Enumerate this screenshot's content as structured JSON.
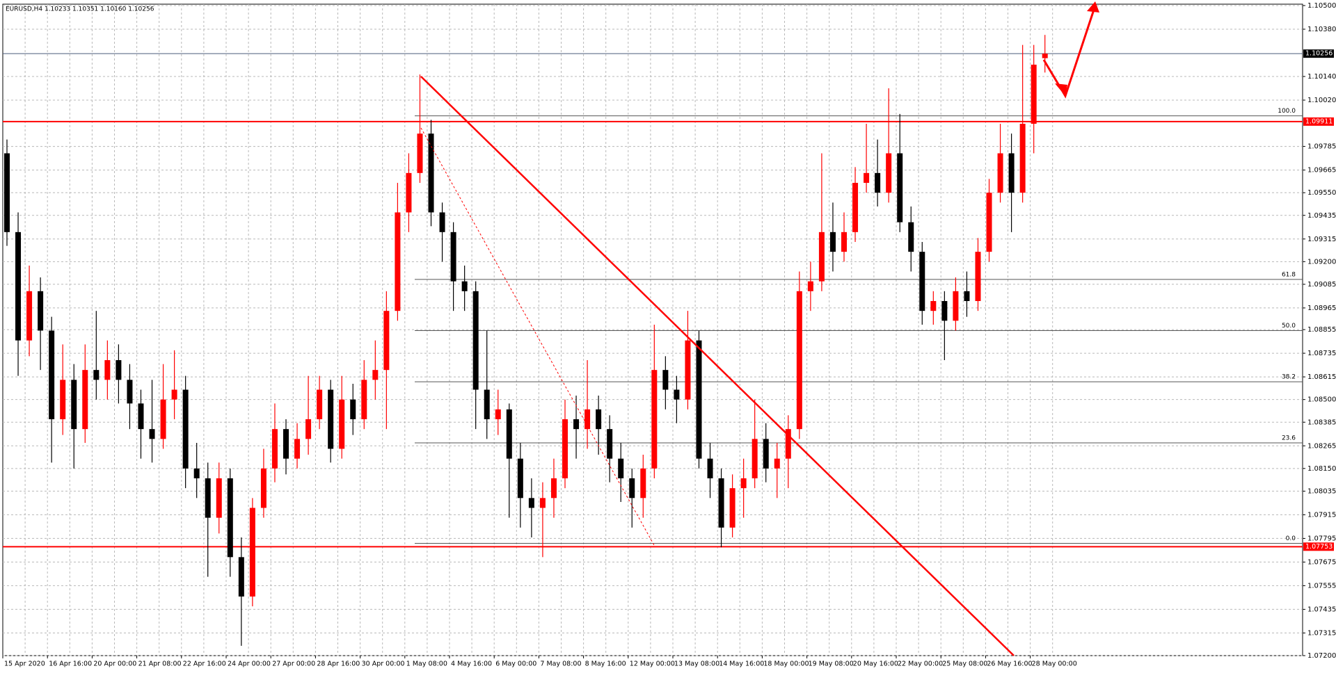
{
  "chart_data": {
    "type": "candlestick",
    "title": "EURUSD,H4  1.10233 1.10351 1.10160 1.10256",
    "up_color": "#ff0000",
    "down_color": "#000000",
    "grid": true,
    "ylim": [
      1.072,
      1.105
    ],
    "yticks": [
      {
        "value": 1.105,
        "label": "1.10500"
      },
      {
        "value": 1.1038,
        "label": "1.10380"
      },
      {
        "value": 1.1014,
        "label": "1.10140"
      },
      {
        "value": 1.1002,
        "label": "1.10020"
      },
      {
        "value": 1.09785,
        "label": "1.09785"
      },
      {
        "value": 1.09665,
        "label": "1.09665"
      },
      {
        "value": 1.0955,
        "label": "1.09550"
      },
      {
        "value": 1.09435,
        "label": "1.09435"
      },
      {
        "value": 1.09315,
        "label": "1.09315"
      },
      {
        "value": 1.092,
        "label": "1.09200"
      },
      {
        "value": 1.09085,
        "label": "1.09085"
      },
      {
        "value": 1.08965,
        "label": "1.08965"
      },
      {
        "value": 1.08855,
        "label": "1.08855"
      },
      {
        "value": 1.08735,
        "label": "1.08735"
      },
      {
        "value": 1.08615,
        "label": "1.08615"
      },
      {
        "value": 1.085,
        "label": "1.08500"
      },
      {
        "value": 1.08385,
        "label": "1.08385"
      },
      {
        "value": 1.08265,
        "label": "1.08265"
      },
      {
        "value": 1.0815,
        "label": "1.08150"
      },
      {
        "value": 1.08035,
        "label": "1.08035"
      },
      {
        "value": 1.07915,
        "label": "1.07915"
      },
      {
        "value": 1.07795,
        "label": "1.07795"
      },
      {
        "value": 1.07675,
        "label": "1.07675"
      },
      {
        "value": 1.07555,
        "label": "1.07555"
      },
      {
        "value": 1.07435,
        "label": "1.07435"
      },
      {
        "value": 1.07315,
        "label": "1.07315"
      },
      {
        "value": 1.072,
        "label": "1.07200"
      }
    ],
    "x_labels": [
      "15 Apr 2020",
      "16 Apr 16:00",
      "20 Apr 00:00",
      "21 Apr 08:00",
      "22 Apr 16:00",
      "24 Apr 00:00",
      "27 Apr 00:00",
      "28 Apr 16:00",
      "30 Apr 00:00",
      "1 May 08:00",
      "4 May 16:00",
      "6 May 00:00",
      "7 May 08:00",
      "8 May 16:00",
      "12 May 00:00",
      "13 May 08:00",
      "14 May 16:00",
      "18 May 00:00",
      "19 May 08:00",
      "20 May 16:00",
      "22 May 00:00",
      "25 May 08:00",
      "26 May 16:00",
      "28 May 00:00"
    ],
    "open": [
      1.0975,
      1.0935,
      1.088,
      1.0905,
      1.0885,
      1.084,
      1.086,
      1.0835,
      1.0865,
      1.086,
      1.087,
      1.086,
      1.0848,
      1.0835,
      1.083,
      1.085,
      1.0855,
      1.0815,
      1.081,
      1.079,
      1.081,
      1.077,
      1.075,
      1.0795,
      1.0815,
      1.0835,
      1.082,
      1.083,
      1.084,
      1.0855,
      1.0825,
      1.085,
      1.084,
      1.086,
      1.0865,
      1.0895,
      1.0945,
      1.0965,
      1.0985,
      1.0945,
      1.0935,
      1.091,
      1.0905,
      1.0855,
      1.084,
      1.0845,
      1.082,
      1.08,
      1.0795,
      1.08,
      1.081,
      1.084,
      1.0835,
      1.0845,
      1.0835,
      1.082,
      1.081,
      1.08,
      1.0815,
      1.0865,
      1.0855,
      1.085,
      1.088,
      1.082,
      1.081,
      1.0785,
      1.0805,
      1.081,
      1.083,
      1.0815,
      1.082,
      1.0835,
      1.0905,
      1.091,
      1.0935,
      1.0925,
      1.0935,
      1.096,
      1.0965,
      1.0955,
      1.0975,
      1.094,
      1.0925,
      1.0895,
      1.09,
      1.089,
      1.0905,
      1.09,
      1.0925,
      1.0955,
      1.0975,
      1.0955,
      1.099,
      1.10233
    ],
    "high": [
      1.0982,
      1.0945,
      1.0918,
      1.0912,
      1.0892,
      1.0878,
      1.0868,
      1.0878,
      1.0895,
      1.088,
      1.0878,
      1.0868,
      1.0855,
      1.086,
      1.0868,
      1.0875,
      1.0862,
      1.0828,
      1.0818,
      1.0818,
      1.0815,
      1.078,
      1.08,
      1.0825,
      1.0848,
      1.084,
      1.0838,
      1.0862,
      1.0862,
      1.086,
      1.0862,
      1.0858,
      1.087,
      1.088,
      1.0905,
      1.096,
      1.0975,
      1.1015,
      1.0992,
      1.095,
      1.094,
      1.0918,
      1.091,
      1.0885,
      1.0855,
      1.0848,
      1.0828,
      1.081,
      1.0808,
      1.082,
      1.085,
      1.0852,
      1.087,
      1.0852,
      1.0842,
      1.0828,
      1.0815,
      1.0822,
      1.0888,
      1.0872,
      1.0862,
      1.0895,
      1.0885,
      1.0828,
      1.0815,
      1.0812,
      1.082,
      1.085,
      1.0838,
      1.0828,
      1.0842,
      1.0915,
      1.092,
      1.0975,
      1.095,
      1.0945,
      1.0968,
      1.099,
      1.0982,
      1.1008,
      1.0995,
      1.0948,
      1.093,
      1.0905,
      1.0905,
      1.0912,
      1.0915,
      1.0932,
      1.0962,
      1.099,
      1.0985,
      1.103,
      1.103,
      1.10351
    ],
    "low": [
      1.0928,
      1.0862,
      1.0872,
      1.0865,
      1.0818,
      1.0832,
      1.0815,
      1.0828,
      1.085,
      1.085,
      1.0848,
      1.0835,
      1.082,
      1.0818,
      1.0825,
      1.084,
      1.0805,
      1.08,
      1.076,
      1.0782,
      1.076,
      1.0725,
      1.0745,
      1.079,
      1.0808,
      1.0812,
      1.0815,
      1.0822,
      1.0835,
      1.0818,
      1.082,
      1.0832,
      1.0835,
      1.085,
      1.0835,
      1.089,
      1.0935,
      1.096,
      1.0938,
      1.092,
      1.0895,
      1.0895,
      1.0835,
      1.083,
      1.0832,
      1.079,
      1.0785,
      1.078,
      1.077,
      1.079,
      1.0805,
      1.082,
      1.0825,
      1.0822,
      1.0808,
      1.0798,
      1.0785,
      1.079,
      1.081,
      1.0845,
      1.0838,
      1.0845,
      1.0815,
      1.08,
      1.0775,
      1.078,
      1.079,
      1.0805,
      1.0808,
      1.08,
      1.0805,
      1.083,
      1.0895,
      1.0905,
      1.0915,
      1.092,
      1.093,
      1.0955,
      1.0948,
      1.095,
      1.0935,
      1.0915,
      1.0888,
      1.0888,
      1.087,
      1.0885,
      1.0892,
      1.0895,
      1.092,
      1.095,
      1.0935,
      1.095,
      1.0975,
      1.1016
    ],
    "close": [
      1.0935,
      1.088,
      1.0905,
      1.0885,
      1.084,
      1.086,
      1.0835,
      1.0865,
      1.086,
      1.087,
      1.086,
      1.0848,
      1.0835,
      1.083,
      1.085,
      1.0855,
      1.0815,
      1.081,
      1.079,
      1.081,
      1.077,
      1.075,
      1.0795,
      1.0815,
      1.0835,
      1.082,
      1.083,
      1.084,
      1.0855,
      1.0825,
      1.085,
      1.084,
      1.086,
      1.0865,
      1.0895,
      1.0945,
      1.0965,
      1.0985,
      1.0945,
      1.0935,
      1.091,
      1.0905,
      1.0855,
      1.084,
      1.0845,
      1.082,
      1.08,
      1.0795,
      1.08,
      1.081,
      1.084,
      1.0835,
      1.0845,
      1.0835,
      1.082,
      1.081,
      1.08,
      1.0815,
      1.0865,
      1.0855,
      1.085,
      1.088,
      1.082,
      1.081,
      1.0785,
      1.0805,
      1.081,
      1.083,
      1.0815,
      1.082,
      1.0835,
      1.0905,
      1.091,
      1.0935,
      1.0925,
      1.0935,
      1.096,
      1.0965,
      1.0955,
      1.0975,
      1.094,
      1.0925,
      1.0895,
      1.09,
      1.089,
      1.0905,
      1.09,
      1.0925,
      1.0955,
      1.0975,
      1.0955,
      1.099,
      1.102,
      1.10256
    ],
    "levels": [
      {
        "price": 1.09911,
        "color": "#ff0000"
      },
      {
        "price": 1.07753,
        "color": "#ff0000"
      }
    ],
    "current_price": 1.10256,
    "fibo": [
      {
        "label": "100.0",
        "price": 1.0994
      },
      {
        "label": "61.8",
        "price": 1.0911
      },
      {
        "label": "50.0",
        "price": 1.0885
      },
      {
        "label": "38.2",
        "price": 1.0859
      },
      {
        "label": "23.6",
        "price": 1.0828
      },
      {
        "label": "0.0",
        "price": 1.0777
      }
    ]
  }
}
